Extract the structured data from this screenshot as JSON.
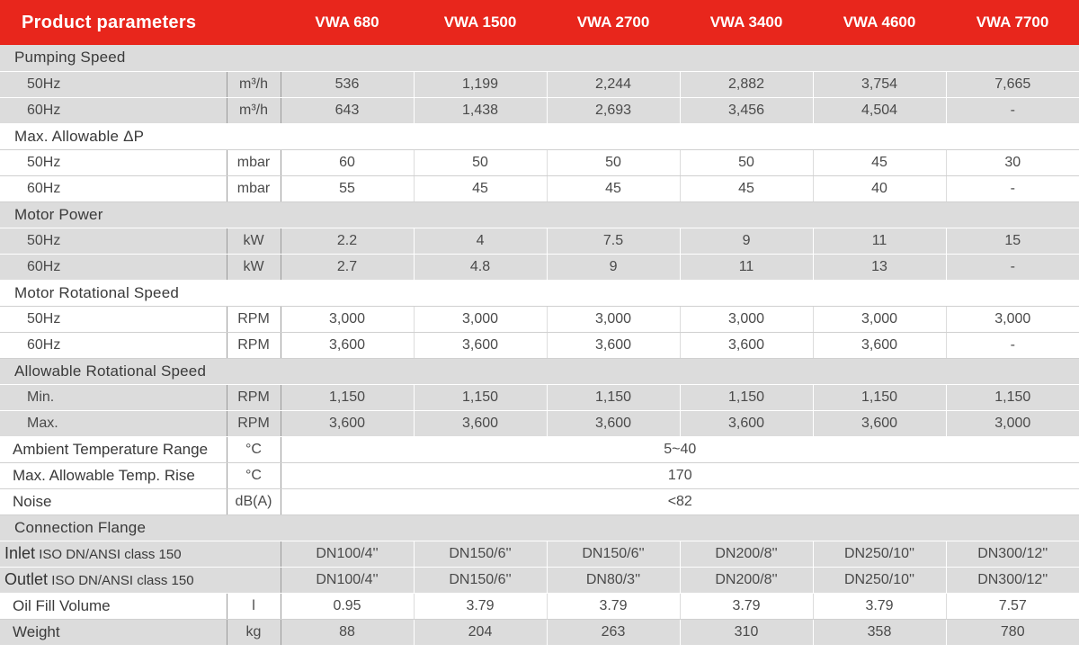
{
  "header": {
    "title": "Product parameters",
    "models": [
      "VWA 680",
      "VWA 1500",
      "VWA 2700",
      "VWA 3400",
      "VWA 4600",
      "VWA 7700"
    ]
  },
  "sections": {
    "pumping_speed": {
      "title": "Pumping Speed",
      "r50": {
        "label": "50Hz",
        "unit": "m³/h",
        "values": [
          "536",
          "1,199",
          "2,244",
          "2,882",
          "3,754",
          "7,665"
        ]
      },
      "r60": {
        "label": "60Hz",
        "unit": "m³/h",
        "values": [
          "643",
          "1,438",
          "2,693",
          "3,456",
          "4,504",
          "-"
        ]
      }
    },
    "max_dp": {
      "title": "Max. Allowable ΔP",
      "r50": {
        "label": "50Hz",
        "unit": "mbar",
        "values": [
          "60",
          "50",
          "50",
          "50",
          "45",
          "30"
        ]
      },
      "r60": {
        "label": "60Hz",
        "unit": "mbar",
        "values": [
          "55",
          "45",
          "45",
          "45",
          "40",
          "-"
        ]
      }
    },
    "motor_power": {
      "title": "Motor Power",
      "r50": {
        "label": "50Hz",
        "unit": "kW",
        "values": [
          "2.2",
          "4",
          "7.5",
          "9",
          "11",
          "15"
        ]
      },
      "r60": {
        "label": "60Hz",
        "unit": "kW",
        "values": [
          "2.7",
          "4.8",
          "9",
          "11",
          "13",
          "-"
        ]
      }
    },
    "motor_speed": {
      "title": "Motor Rotational Speed",
      "r50": {
        "label": "50Hz",
        "unit": "RPM",
        "values": [
          "3,000",
          "3,000",
          "3,000",
          "3,000",
          "3,000",
          "3,000"
        ]
      },
      "r60": {
        "label": "60Hz",
        "unit": "RPM",
        "values": [
          "3,600",
          "3,600",
          "3,600",
          "3,600",
          "3,600",
          "-"
        ]
      }
    },
    "allowable_speed": {
      "title": "Allowable Rotational Speed",
      "rmin": {
        "label": "Min.",
        "unit": "RPM",
        "values": [
          "1,150",
          "1,150",
          "1,150",
          "1,150",
          "1,150",
          "1,150"
        ]
      },
      "rmax": {
        "label": "Max.",
        "unit": "RPM",
        "values": [
          "3,600",
          "3,600",
          "3,600",
          "3,600",
          "3,600",
          "3,000"
        ]
      }
    }
  },
  "ambient": {
    "label": "Ambient Temperature Range",
    "unit": "°C",
    "value": "5~40"
  },
  "temp_rise": {
    "label": "Max. Allowable Temp. Rise",
    "unit": "°C",
    "value": "170"
  },
  "noise": {
    "label": "Noise",
    "unit": "dB(A)",
    "value": "<82"
  },
  "flange": {
    "title": "Connection Flange",
    "inlet": {
      "name": "Inlet",
      "spec": " ISO DN/ANSI class 150",
      "values": [
        "DN100/4''",
        "DN150/6''",
        "DN150/6''",
        "DN200/8''",
        "DN250/10''",
        "DN300/12''"
      ]
    },
    "outlet": {
      "name": "Outlet",
      "spec": " ISO DN/ANSI class 150",
      "values": [
        "DN100/4''",
        "DN150/6''",
        "DN80/3''",
        "DN200/8''",
        "DN250/10''",
        "DN300/12''"
      ]
    }
  },
  "oil": {
    "label": "Oil Fill Volume",
    "unit": "l",
    "values": [
      "0.95",
      "3.79",
      "3.79",
      "3.79",
      "3.79",
      "7.57"
    ]
  },
  "weight": {
    "label": "Weight",
    "unit": "kg",
    "values": [
      "88",
      "204",
      "263",
      "310",
      "358",
      "780"
    ]
  }
}
